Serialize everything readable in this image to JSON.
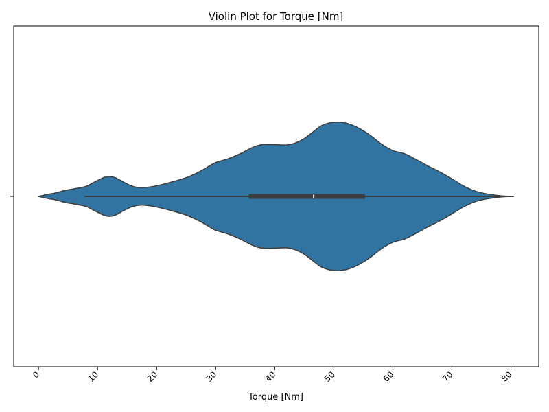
{
  "chart_data": {
    "type": "violin",
    "title": "Violin Plot for Torque [Nm]",
    "xlabel": "Torque [Nm]",
    "ylabel": "",
    "xlim": [
      -4.2,
      84.7
    ],
    "xticks": [
      0,
      10,
      20,
      30,
      40,
      50,
      60,
      70,
      80
    ],
    "xtick_labels": [
      "0",
      "10",
      "20",
      "30",
      "40",
      "50",
      "60",
      "70",
      "80"
    ],
    "xtick_rotation": 45,
    "grid": false,
    "legend": "none",
    "color": "#3274a1",
    "edge_color": "#3d3d3d",
    "box": {
      "whisker_low": 7.8,
      "q1": 35.6,
      "median": 46.6,
      "q3": 55.3,
      "whisker_high": 80.5
    },
    "density": {
      "x": [
        0,
        1.5,
        3,
        4.5,
        6,
        8,
        9.5,
        11,
        12,
        13,
        14.5,
        16,
        17.5,
        19,
        21,
        23,
        25,
        27,
        29,
        30,
        32,
        34,
        36,
        37,
        38,
        40,
        42,
        43.5,
        45,
        46.5,
        48,
        50,
        52,
        54,
        56,
        58,
        60,
        62,
        64,
        66,
        68,
        70,
        72,
        74,
        76,
        78,
        80
      ],
      "width": [
        0,
        0.05,
        0.09,
        0.15,
        0.19,
        0.25,
        0.36,
        0.47,
        0.5,
        0.47,
        0.35,
        0.25,
        0.22,
        0.24,
        0.3,
        0.38,
        0.47,
        0.6,
        0.77,
        0.85,
        0.94,
        1.06,
        1.21,
        1.27,
        1.3,
        1.3,
        1.29,
        1.34,
        1.45,
        1.62,
        1.78,
        1.86,
        1.84,
        1.73,
        1.55,
        1.32,
        1.15,
        1.07,
        0.92,
        0.76,
        0.61,
        0.44,
        0.26,
        0.13,
        0.06,
        0.02,
        0
      ]
    }
  }
}
